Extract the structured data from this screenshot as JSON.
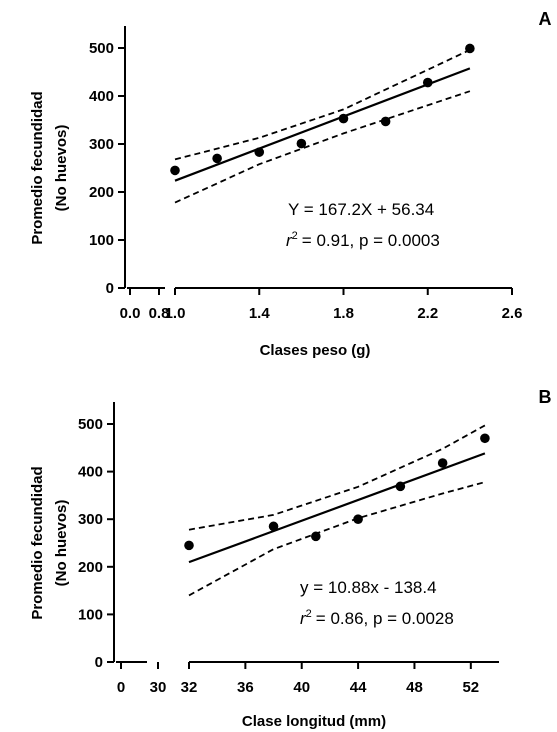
{
  "chart_data": [
    {
      "panel_label": "A",
      "type": "scatter",
      "xlabel": "Clases peso (g)",
      "ylabel": "Promedio fecundidad",
      "ylabel2": "(No huevos)",
      "x_ticks_break": [
        "0.0",
        "0.8"
      ],
      "x_ticks": [
        "1.0",
        "1.4",
        "1.8",
        "2.2",
        "2.6"
      ],
      "y_ticks": [
        "0",
        "100",
        "200",
        "300",
        "400",
        "500"
      ],
      "xlim": [
        1.0,
        2.6
      ],
      "ylim": [
        0,
        500
      ],
      "points": [
        {
          "x": 1.0,
          "y": 245
        },
        {
          "x": 1.2,
          "y": 270
        },
        {
          "x": 1.4,
          "y": 283
        },
        {
          "x": 1.6,
          "y": 301
        },
        {
          "x": 1.8,
          "y": 353
        },
        {
          "x": 2.0,
          "y": 347
        },
        {
          "x": 2.2,
          "y": 428
        },
        {
          "x": 2.4,
          "y": 499
        }
      ],
      "fit": {
        "slope": 167.2,
        "intercept": 56.34,
        "x_range": [
          1.0,
          2.4
        ]
      },
      "ci_upper": [
        {
          "x": 1.0,
          "y": 268
        },
        {
          "x": 1.4,
          "y": 313
        },
        {
          "x": 1.8,
          "y": 372
        },
        {
          "x": 2.4,
          "y": 496
        }
      ],
      "ci_lower": [
        {
          "x": 1.0,
          "y": 178
        },
        {
          "x": 1.4,
          "y": 258
        },
        {
          "x": 1.8,
          "y": 322
        },
        {
          "x": 2.4,
          "y": 410
        }
      ],
      "equation": "Y = 167.2X + 56.34",
      "r2_value": "= 0.91, p = 0.0003"
    },
    {
      "panel_label": "B",
      "type": "scatter",
      "xlabel": "Clase longitud (mm)",
      "ylabel": "Promedio fecundidad",
      "ylabel2": "(No huevos)",
      "x_ticks_break": [
        "0",
        "30"
      ],
      "x_ticks": [
        "32",
        "36",
        "40",
        "44",
        "48",
        "52"
      ],
      "y_ticks": [
        "0",
        "100",
        "200",
        "300",
        "400",
        "500"
      ],
      "xlim": [
        32,
        54
      ],
      "ylim": [
        0,
        500
      ],
      "points": [
        {
          "x": 32,
          "y": 245
        },
        {
          "x": 38,
          "y": 285
        },
        {
          "x": 41,
          "y": 264
        },
        {
          "x": 44,
          "y": 300
        },
        {
          "x": 47,
          "y": 369
        },
        {
          "x": 50,
          "y": 418
        },
        {
          "x": 53,
          "y": 470
        }
      ],
      "fit": {
        "slope": 10.88,
        "intercept": -138.4,
        "x_range": [
          32,
          53
        ]
      },
      "ci_upper": [
        {
          "x": 32,
          "y": 278
        },
        {
          "x": 38,
          "y": 309
        },
        {
          "x": 44,
          "y": 368
        },
        {
          "x": 50,
          "y": 448
        },
        {
          "x": 53,
          "y": 497
        }
      ],
      "ci_lower": [
        {
          "x": 32,
          "y": 140
        },
        {
          "x": 38,
          "y": 237
        },
        {
          "x": 44,
          "y": 302
        },
        {
          "x": 50,
          "y": 354
        },
        {
          "x": 53,
          "y": 378
        }
      ],
      "equation": "y = 10.88x - 138.4",
      "r2_value": "= 0.86, p = 0.0028"
    }
  ]
}
